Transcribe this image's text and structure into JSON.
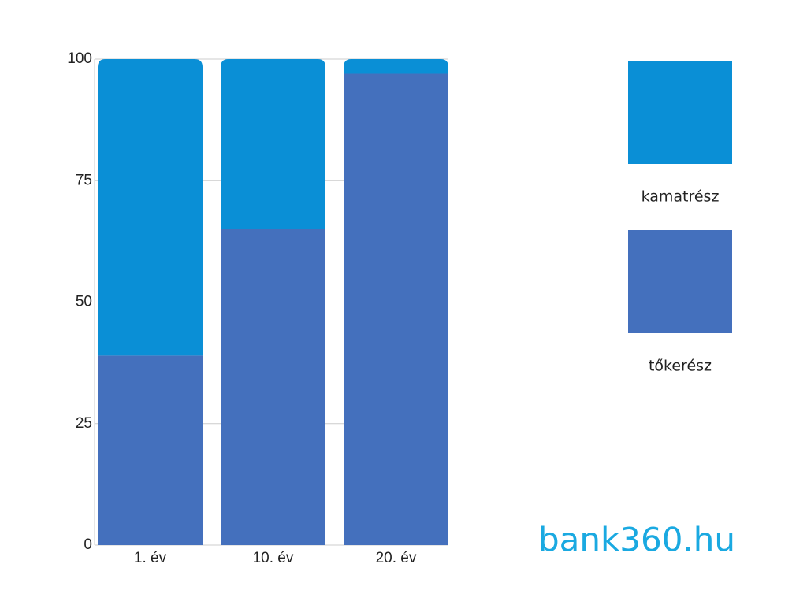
{
  "chart_data": {
    "type": "stacked_bar",
    "categories": [
      "1. év",
      "10. év",
      "20. év"
    ],
    "series": [
      {
        "name": "tőkerész",
        "color": "#4470bd",
        "values": [
          39,
          65,
          97
        ]
      },
      {
        "name": "kamatrész",
        "color": "#0a8fd6",
        "values": [
          61,
          35,
          3
        ]
      }
    ],
    "ylim": [
      0,
      100
    ],
    "yticks": [
      0,
      25,
      50,
      75,
      100
    ],
    "grid": true,
    "logo": "bank360.hu"
  }
}
